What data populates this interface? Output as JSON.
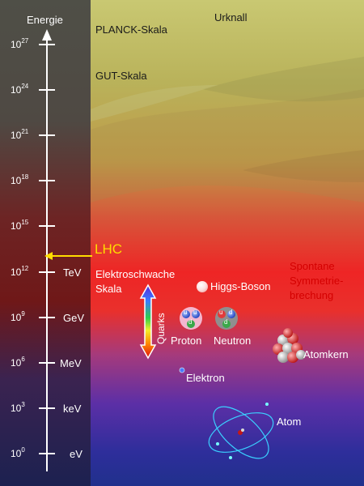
{
  "axis": {
    "title": "Energie",
    "ticks": [
      {
        "base": "10",
        "exp": "27",
        "unit": ""
      },
      {
        "base": "10",
        "exp": "24",
        "unit": ""
      },
      {
        "base": "10",
        "exp": "21",
        "unit": ""
      },
      {
        "base": "10",
        "exp": "18",
        "unit": ""
      },
      {
        "base": "10",
        "exp": "15",
        "unit": ""
      },
      {
        "base": "10",
        "exp": "12",
        "unit": "TeV"
      },
      {
        "base": "10",
        "exp": "9",
        "unit": "GeV"
      },
      {
        "base": "10",
        "exp": "6",
        "unit": "MeV"
      },
      {
        "base": "10",
        "exp": "3",
        "unit": "keV"
      },
      {
        "base": "10",
        "exp": "0",
        "unit": "eV"
      }
    ]
  },
  "labels": {
    "urknall": "Urknall",
    "planck": "PLANCK-Skala",
    "gut": "GUT-Skala",
    "lhc": "LHC",
    "elektroschwache_1": "Elektroschwache",
    "elektroschwache_2": "Skala",
    "spontane_1": "Spontane",
    "spontane_2": "Symmetrie-",
    "spontane_3": "brechung",
    "higgs": "Higgs-Boson",
    "quarks": "Quarks",
    "proton": "Proton",
    "neutron": "Neutron",
    "atomkern": "Atomkern",
    "elektron": "Elektron",
    "atom": "Atom"
  },
  "quark_letters": {
    "proton": [
      "u",
      "u",
      "d"
    ],
    "neutron": [
      "u",
      "d",
      "d"
    ]
  },
  "colors": {
    "lhc": "#ffdd00",
    "spontane": "#d40000",
    "axis_line": "#ffffff"
  }
}
